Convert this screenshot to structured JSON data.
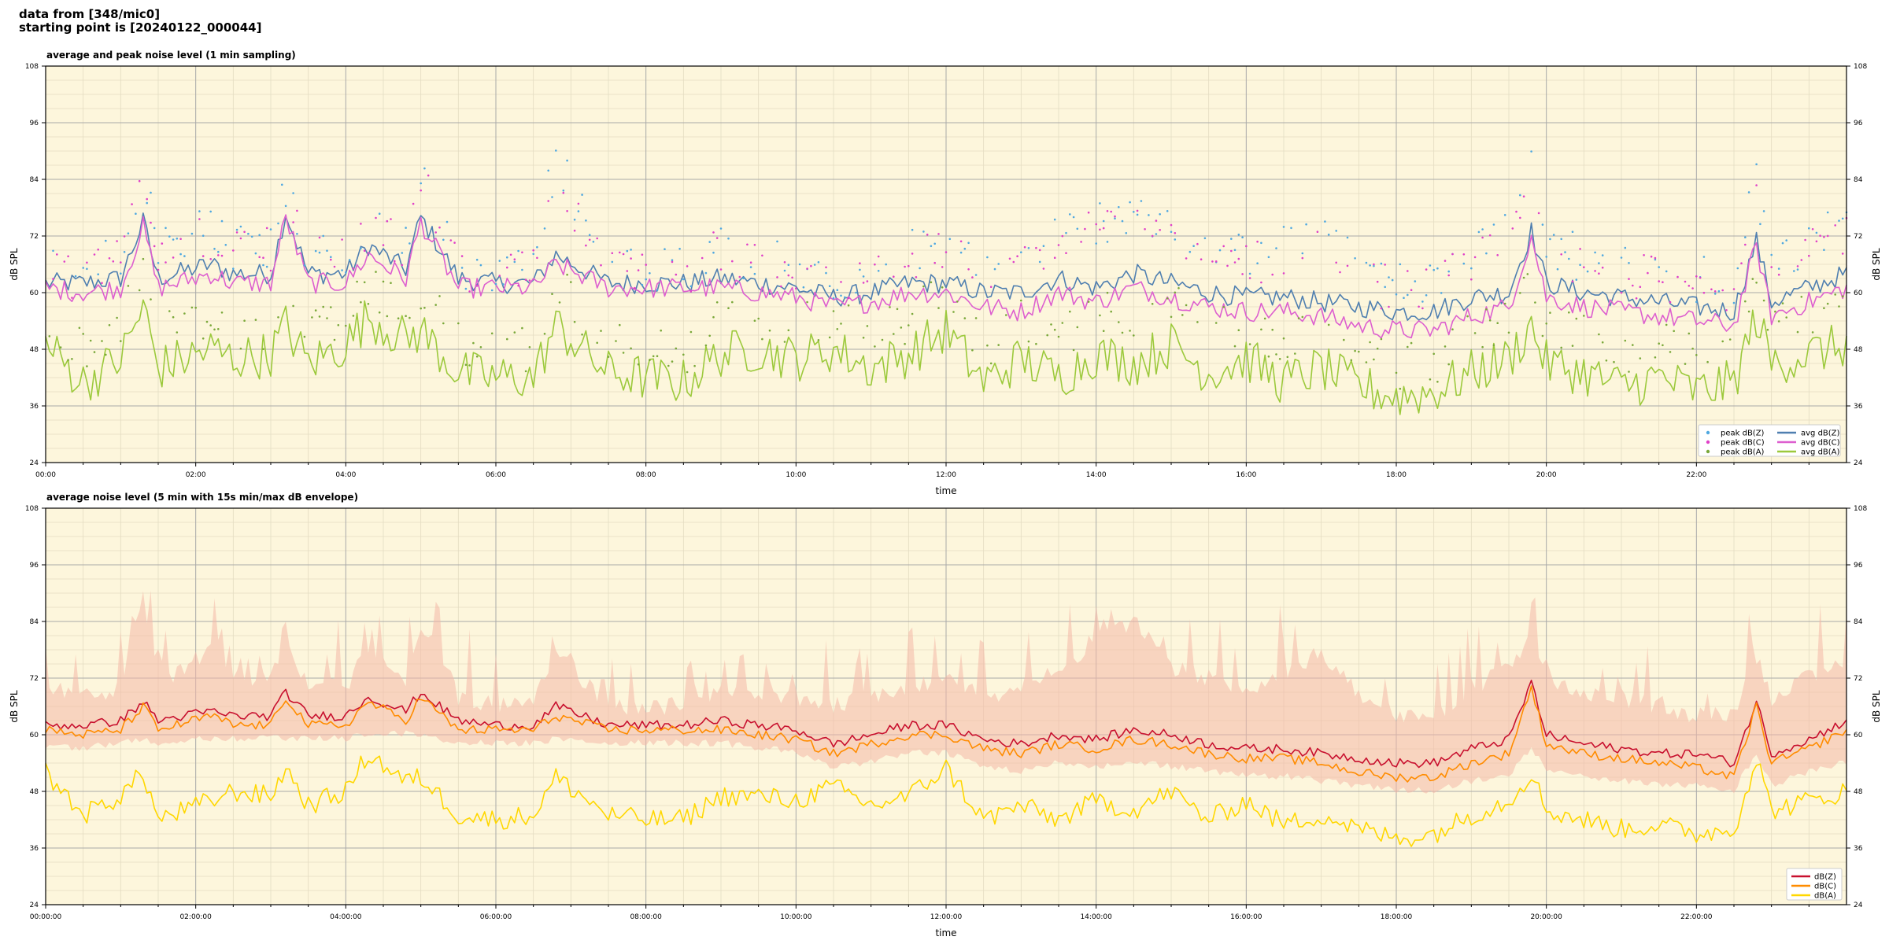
{
  "header": {
    "line1": "data from [348/mic0]",
    "line2": "starting point is [20240122_000044]"
  },
  "chart_data": [
    {
      "type": "line",
      "title": "average and peak noise level (1 min sampling)",
      "xlabel": "time",
      "ylabel": "dB SPL",
      "ylim": [
        24,
        108
      ],
      "xlim_hours": [
        0,
        24
      ],
      "yticks": [
        "24",
        "36",
        "48",
        "60",
        "72",
        "84",
        "96",
        "108"
      ],
      "xticks": [
        "00:00",
        "02:00",
        "04:00",
        "06:00",
        "08:00",
        "10:00",
        "12:00",
        "14:00",
        "16:00",
        "18:00",
        "20:00",
        "22:00"
      ],
      "grid": true,
      "background": "#fdf6dc",
      "legend_position": "lower-right",
      "legend_columns": 2,
      "key_hours": [
        0,
        0.5,
        1.0,
        1.3,
        1.5,
        2.2,
        2.5,
        3.0,
        3.2,
        3.5,
        4.0,
        4.3,
        4.8,
        5.0,
        5.5,
        6.0,
        6.5,
        6.8,
        7.5,
        8.0,
        8.5,
        9.0,
        9.5,
        10.0,
        10.5,
        11.0,
        11.5,
        12.0,
        12.5,
        13.0,
        13.5,
        14.0,
        14.5,
        15.0,
        15.5,
        16.0,
        16.5,
        17.0,
        17.5,
        18.0,
        18.5,
        19.0,
        19.5,
        19.8,
        20.0,
        20.5,
        21.0,
        21.5,
        22.0,
        22.5,
        22.8,
        23.0,
        23.5,
        24.0
      ],
      "series": [
        {
          "name": "avg dB(Z)",
          "kind": "line",
          "color": "#4f7fb0",
          "values": [
            62,
            62,
            63,
            75,
            63,
            66,
            64,
            64,
            77,
            64,
            64,
            70,
            65,
            76,
            63,
            62,
            62,
            68,
            62,
            62,
            62,
            63,
            62,
            61,
            59,
            60,
            62,
            62,
            60,
            60,
            63,
            61,
            64,
            62,
            60,
            59,
            59,
            58,
            57,
            56,
            56,
            59,
            60,
            73,
            62,
            60,
            59,
            58,
            57,
            56,
            71,
            58,
            61,
            64
          ]
        },
        {
          "name": "avg dB(C)",
          "kind": "line",
          "color": "#dd5fcf",
          "values": [
            61,
            60,
            61,
            74,
            61,
            64,
            62,
            62,
            76,
            62,
            62,
            68,
            63,
            75,
            61,
            61,
            61,
            66,
            61,
            61,
            61,
            61,
            60,
            59,
            57,
            58,
            60,
            60,
            57,
            56,
            60,
            58,
            61,
            59,
            57,
            56,
            56,
            55,
            53,
            52,
            52,
            55,
            57,
            72,
            59,
            57,
            56,
            55,
            54,
            53,
            70,
            55,
            58,
            61
          ]
        },
        {
          "name": "avg dB(A)",
          "kind": "line",
          "color": "#9cc93c",
          "values": [
            49,
            41,
            46,
            57,
            44,
            48,
            46,
            47,
            53,
            45,
            49,
            55,
            50,
            52,
            43,
            42,
            42,
            53,
            43,
            42,
            41,
            47,
            48,
            46,
            48,
            44,
            47,
            52,
            41,
            46,
            42,
            47,
            45,
            49,
            43,
            46,
            41,
            44,
            40,
            38,
            39,
            43,
            46,
            53,
            45,
            43,
            40,
            42,
            39,
            41,
            55,
            45,
            47,
            49
          ]
        },
        {
          "name": "peak dB(Z)",
          "kind": "scatter",
          "color": "#4fa8e0",
          "values": [
            66,
            64,
            69,
            86,
            68,
            74,
            69,
            70,
            82,
            68,
            68,
            75,
            70,
            85,
            66,
            64,
            66,
            89,
            65,
            64,
            65,
            70,
            66,
            66,
            63,
            66,
            69,
            70,
            67,
            69,
            72,
            75,
            77,
            72,
            70,
            68,
            70,
            74,
            66,
            62,
            62,
            69,
            72,
            85,
            70,
            67,
            66,
            65,
            63,
            62,
            84,
            66,
            70,
            75
          ]
        },
        {
          "name": "peak dB(C)",
          "kind": "scatter",
          "color": "#e040c8",
          "values": [
            65,
            63,
            67,
            88,
            66,
            72,
            68,
            69,
            80,
            67,
            67,
            74,
            69,
            84,
            65,
            63,
            64,
            84,
            64,
            63,
            64,
            69,
            65,
            65,
            61,
            64,
            67,
            68,
            65,
            67,
            70,
            73,
            75,
            70,
            68,
            66,
            68,
            72,
            64,
            60,
            60,
            67,
            70,
            83,
            68,
            65,
            64,
            63,
            61,
            60,
            82,
            64,
            68,
            73
          ]
        },
        {
          "name": "peak dB(A)",
          "kind": "scatter",
          "color": "#7aa83a",
          "values": [
            55,
            47,
            52,
            68,
            50,
            56,
            52,
            53,
            64,
            51,
            55,
            62,
            56,
            60,
            49,
            48,
            48,
            62,
            49,
            48,
            47,
            54,
            55,
            53,
            55,
            51,
            54,
            60,
            48,
            54,
            50,
            56,
            54,
            58,
            51,
            54,
            48,
            52,
            47,
            44,
            45,
            51,
            54,
            62,
            53,
            51,
            47,
            49,
            46,
            48,
            64,
            52,
            55,
            57
          ]
        }
      ]
    },
    {
      "type": "line",
      "title": "average noise level (5 min with 15s min/max dB envelope)",
      "xlabel": "time",
      "ylabel": "dB SPL",
      "ylim": [
        24,
        108
      ],
      "xlim_hours": [
        0,
        24
      ],
      "yticks": [
        "24",
        "36",
        "48",
        "60",
        "72",
        "84",
        "96",
        "108"
      ],
      "xticks": [
        "00:00:00",
        "02:00:00",
        "04:00:00",
        "06:00:00",
        "08:00:00",
        "10:00:00",
        "12:00:00",
        "14:00:00",
        "16:00:00",
        "18:00:00",
        "20:00:00",
        "22:00:00"
      ],
      "grid": true,
      "background": "#fdf6dc",
      "legend_position": "lower-right",
      "envelope_color": "#f4b8a8",
      "key_hours": [
        0,
        0.5,
        1.0,
        1.3,
        1.5,
        2.2,
        2.5,
        3.0,
        3.2,
        3.5,
        4.0,
        4.3,
        4.8,
        5.0,
        5.5,
        6.0,
        6.5,
        6.8,
        7.5,
        8.0,
        8.5,
        9.0,
        9.5,
        10.0,
        10.5,
        11.0,
        11.5,
        12.0,
        12.5,
        13.0,
        13.5,
        14.0,
        14.5,
        15.0,
        15.5,
        16.0,
        16.5,
        17.0,
        17.5,
        18.0,
        18.5,
        19.0,
        19.5,
        19.8,
        20.0,
        20.5,
        21.0,
        21.5,
        22.0,
        22.5,
        22.8,
        23.0,
        23.5,
        24.0
      ],
      "envelope_max": [
        72,
        70,
        72,
        92,
        72,
        80,
        74,
        74,
        84,
        72,
        72,
        80,
        74,
        86,
        70,
        68,
        68,
        80,
        68,
        68,
        68,
        72,
        70,
        70,
        68,
        70,
        72,
        74,
        70,
        72,
        76,
        82,
        86,
        76,
        74,
        72,
        74,
        80,
        70,
        66,
        66,
        72,
        76,
        84,
        74,
        70,
        70,
        68,
        66,
        66,
        78,
        70,
        74,
        78
      ],
      "envelope_min": [
        58,
        58,
        59,
        60,
        59,
        60,
        60,
        60,
        60,
        60,
        60,
        61,
        61,
        61,
        59,
        59,
        59,
        60,
        59,
        59,
        59,
        59,
        58,
        57,
        54,
        55,
        57,
        57,
        54,
        53,
        55,
        54,
        55,
        54,
        53,
        52,
        52,
        51,
        50,
        49,
        49,
        51,
        52,
        58,
        53,
        52,
        51,
        50,
        50,
        49,
        57,
        50,
        53,
        55
      ],
      "series": [
        {
          "name": "dB(Z)",
          "color": "#c8102e",
          "values": [
            62,
            62,
            63,
            67,
            63,
            65,
            64,
            64,
            69,
            64,
            64,
            68,
            65,
            69,
            63,
            62,
            62,
            66,
            62,
            62,
            62,
            63,
            62,
            61,
            58,
            60,
            62,
            62,
            59,
            58,
            60,
            59,
            61,
            60,
            58,
            57,
            57,
            56,
            55,
            54,
            54,
            57,
            59,
            71,
            60,
            58,
            57,
            56,
            56,
            54,
            67,
            56,
            59,
            63
          ]
        },
        {
          "name": "dB(C)",
          "color": "#ff8c00",
          "values": [
            61,
            60,
            61,
            66,
            61,
            64,
            62,
            62,
            68,
            62,
            62,
            67,
            63,
            68,
            61,
            61,
            61,
            64,
            61,
            61,
            61,
            61,
            60,
            59,
            56,
            58,
            60,
            60,
            57,
            56,
            58,
            57,
            59,
            58,
            56,
            55,
            55,
            54,
            52,
            51,
            51,
            54,
            56,
            70,
            58,
            56,
            55,
            54,
            53,
            51,
            66,
            54,
            57,
            61
          ]
        },
        {
          "name": "dB(A)",
          "color": "#ffd700",
          "values": [
            52,
            43,
            47,
            52,
            42,
            46,
            48,
            47,
            53,
            45,
            48,
            56,
            50,
            51,
            43,
            42,
            43,
            51,
            43,
            42,
            42,
            47,
            47,
            46,
            49,
            45,
            47,
            53,
            42,
            45,
            42,
            46,
            44,
            48,
            42,
            46,
            41,
            43,
            40,
            38,
            39,
            43,
            46,
            52,
            44,
            42,
            40,
            41,
            39,
            40,
            55,
            44,
            46,
            48
          ]
        }
      ]
    }
  ]
}
